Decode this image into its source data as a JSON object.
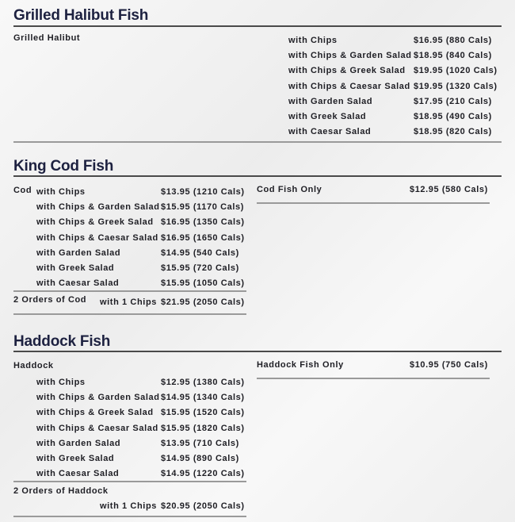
{
  "halibut": {
    "title": "Grilled Halibut Fish",
    "item": "Grilled Halibut",
    "options": [
      {
        "label": "with Chips",
        "price": "$16.95 (880 Cals)"
      },
      {
        "label": "with Chips & Garden Salad",
        "price": "$18.95 (840 Cals)"
      },
      {
        "label": "with Chips & Greek Salad",
        "price": "$19.95 (1020 Cals)"
      },
      {
        "label": "with Chips & Caesar Salad",
        "price": "$19.95 (1320 Cals)"
      },
      {
        "label": "with Garden Salad",
        "price": "$17.95 (210 Cals)"
      },
      {
        "label": "with Greek Salad",
        "price": "$18.95 (490 Cals)"
      },
      {
        "label": "with Caesar Salad",
        "price": "$18.95 (820 Cals)"
      }
    ]
  },
  "cod": {
    "title": "King Cod Fish",
    "item": "Cod",
    "options": [
      {
        "label": "with Chips",
        "price": "$13.95 (1210 Cals)"
      },
      {
        "label": "with Chips & Garden Salad",
        "price": "$15.95 (1170 Cals)"
      },
      {
        "label": "with Chips & Greek Salad",
        "price": "$16.95 (1350 Cals)"
      },
      {
        "label": "with Chips & Caesar Salad",
        "price": "$16.95 (1650 Cals)"
      },
      {
        "label": "with Garden Salad",
        "price": "$14.95 (540 Cals)"
      },
      {
        "label": "with Greek Salad",
        "price": "$15.95 (720 Cals)"
      },
      {
        "label": "with Caesar Salad",
        "price": "$15.95 (1050 Cals)"
      }
    ],
    "double": {
      "label": "2 Orders of Cod",
      "option": "with 1 Chips",
      "price": "$21.95 (2050 Cals)"
    },
    "only": {
      "label": "Cod Fish Only",
      "price": "$12.95 (580 Cals)"
    }
  },
  "haddock": {
    "title": "Haddock Fish",
    "item": "Haddock",
    "options": [
      {
        "label": "with Chips",
        "price": "$12.95 (1380 Cals)"
      },
      {
        "label": "with Chips & Garden Salad",
        "price": "$14.95 (1340 Cals)"
      },
      {
        "label": "with Chips & Greek Salad",
        "price": "$15.95 (1520 Cals)"
      },
      {
        "label": "with Chips & Caesar Salad",
        "price": "$15.95 (1820 Cals)"
      },
      {
        "label": "with Garden Salad",
        "price": "$13.95 (710 Cals)"
      },
      {
        "label": "with Greek Salad",
        "price": "$14.95 (890 Cals)"
      },
      {
        "label": "with Caesar Salad",
        "price": "$14.95 (1220 Cals)"
      }
    ],
    "double": {
      "label": "2 Orders of Haddock",
      "option": "with 1 Chips",
      "price": "$20.95 (2050 Cals)"
    },
    "only": {
      "label": "Haddock Fish Only",
      "price": "$10.95 (750 Cals)"
    }
  }
}
